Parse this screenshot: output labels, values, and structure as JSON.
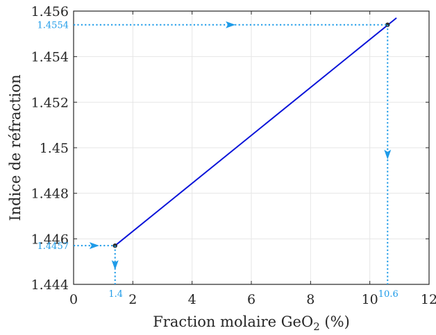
{
  "chart_data": {
    "type": "line",
    "xlabel": {
      "main": "Fraction molaire GeO",
      "sub": "2",
      "suffix": " (%)"
    },
    "ylabel": "Indice de réfraction",
    "xlim": [
      0,
      12
    ],
    "ylim": [
      1.444,
      1.456
    ],
    "xticks": [
      0,
      2,
      4,
      6,
      8,
      10,
      12
    ],
    "xtick_labels": [
      "0",
      "2",
      "4",
      "6",
      "8",
      "10",
      "12"
    ],
    "yticks": [
      1.444,
      1.446,
      1.448,
      1.45,
      1.452,
      1.454,
      1.456
    ],
    "ytick_labels": [
      "1.444",
      "1.446",
      "1.448",
      "1.45",
      "1.452",
      "1.454",
      "1.456"
    ],
    "grid": true,
    "series": [
      {
        "color": "#0a14d9",
        "x": [
          1.4,
          10.9
        ],
        "y": [
          1.4457,
          1.4557
        ]
      }
    ],
    "highlighted_points": [
      {
        "x": 1.4,
        "y": 1.4457,
        "x_label": "1.4",
        "y_label": "1.4457"
      },
      {
        "x": 10.6,
        "y": 1.4554,
        "x_label": "10.6",
        "y_label": "1.4554"
      }
    ],
    "colors": {
      "line": "#0a14d9",
      "annotation": "#1e9be8",
      "axis": "#262626",
      "grid": "#e6e6e6",
      "marker": "#2b2b2b"
    }
  }
}
